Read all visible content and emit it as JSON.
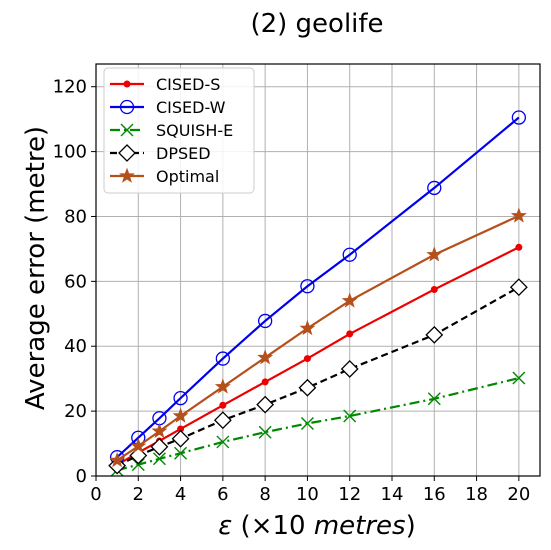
{
  "chart_data": {
    "type": "line",
    "title": "(2) geolife",
    "xlabel": "ε (×10 metres)",
    "xlabel_parts": {
      "symbol": "ε",
      "open": " (×10 ",
      "unit": "metres",
      "close": ")"
    },
    "ylabel": "Average error (metre)",
    "xlim": [
      0,
      21
    ],
    "ylim": [
      0,
      127
    ],
    "xticks": [
      0,
      2,
      4,
      6,
      8,
      10,
      12,
      14,
      16,
      18,
      20
    ],
    "yticks": [
      0,
      20,
      40,
      60,
      80,
      100,
      120
    ],
    "grid": true,
    "legend_position": "top-left",
    "x": [
      1,
      2,
      3,
      4,
      6,
      8,
      10,
      12,
      16,
      20
    ],
    "series": [
      {
        "name": "CISED-S",
        "color": "#ee0000",
        "marker": "dot",
        "dash": "solid",
        "values": [
          3.5,
          7.2,
          10.8,
          14.5,
          21.8,
          29.0,
          36.2,
          43.8,
          57.5,
          70.5
        ]
      },
      {
        "name": "CISED-W",
        "color": "#0000ee",
        "marker": "circle",
        "dash": "solid",
        "values": [
          5.8,
          11.8,
          17.8,
          24.0,
          36.2,
          47.8,
          58.5,
          68.2,
          88.8,
          110.5
        ]
      },
      {
        "name": "SQUISH-E",
        "color": "#008800",
        "marker": "x",
        "dash": "dashdot",
        "values": [
          1.8,
          3.5,
          5.3,
          7.0,
          10.5,
          13.5,
          16.2,
          18.5,
          23.8,
          30.2
        ]
      },
      {
        "name": "DPSED",
        "color": "#000000",
        "marker": "diamond",
        "dash": "dashed",
        "values": [
          3.2,
          6.3,
          9.0,
          11.5,
          17.2,
          22.0,
          27.2,
          33.0,
          43.5,
          58.2
        ]
      },
      {
        "name": "Optimal",
        "color": "#b5501c",
        "marker": "star",
        "dash": "solid",
        "values": [
          4.8,
          9.2,
          13.8,
          18.5,
          27.5,
          36.5,
          45.5,
          54.0,
          68.2,
          80.2
        ]
      }
    ]
  }
}
